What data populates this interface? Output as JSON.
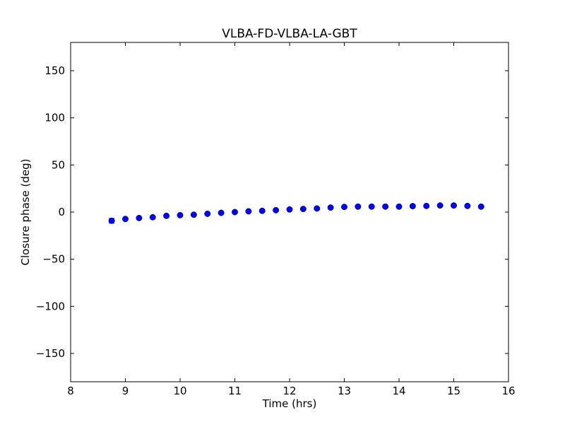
{
  "chart_data": {
    "type": "scatter",
    "title": "VLBA-FD-VLBA-LA-GBT",
    "xlabel": "Time (hrs)",
    "ylabel": "Closure phase (deg)",
    "xlim": [
      8,
      16
    ],
    "ylim": [
      -180,
      180
    ],
    "xticks": [
      8,
      9,
      10,
      11,
      12,
      13,
      14,
      15,
      16
    ],
    "yticks": [
      -150,
      -100,
      -50,
      0,
      50,
      100,
      150
    ],
    "ytick_labels": [
      "−150",
      "−100",
      "−50",
      "0",
      "50",
      "100",
      "150"
    ],
    "grid": false,
    "marker_color": "#0000ff",
    "series": [
      {
        "name": "closure phase",
        "x": [
          8.75,
          9.0,
          9.25,
          9.5,
          9.75,
          10.0,
          10.25,
          10.5,
          10.75,
          11.0,
          11.25,
          11.5,
          11.75,
          12.0,
          12.25,
          12.5,
          12.75,
          13.0,
          13.25,
          13.5,
          13.75,
          14.0,
          14.25,
          14.5,
          14.75,
          15.0,
          15.25,
          15.5
        ],
        "y": [
          -9.2,
          -7.3,
          -6.3,
          -5.5,
          -4.0,
          -3.3,
          -2.8,
          -1.8,
          -0.8,
          0.0,
          0.8,
          1.3,
          2.0,
          2.8,
          3.3,
          3.8,
          4.8,
          5.5,
          5.8,
          5.8,
          5.8,
          5.8,
          6.3,
          6.5,
          7.0,
          7.0,
          6.5,
          5.8
        ],
        "yerr": [
          2.5,
          1,
          1,
          1,
          1,
          1,
          1,
          1,
          1,
          1,
          1,
          1,
          1,
          1,
          1,
          1,
          1,
          1,
          1,
          1,
          1,
          1,
          1,
          1,
          1,
          1,
          1,
          1
        ]
      }
    ]
  }
}
